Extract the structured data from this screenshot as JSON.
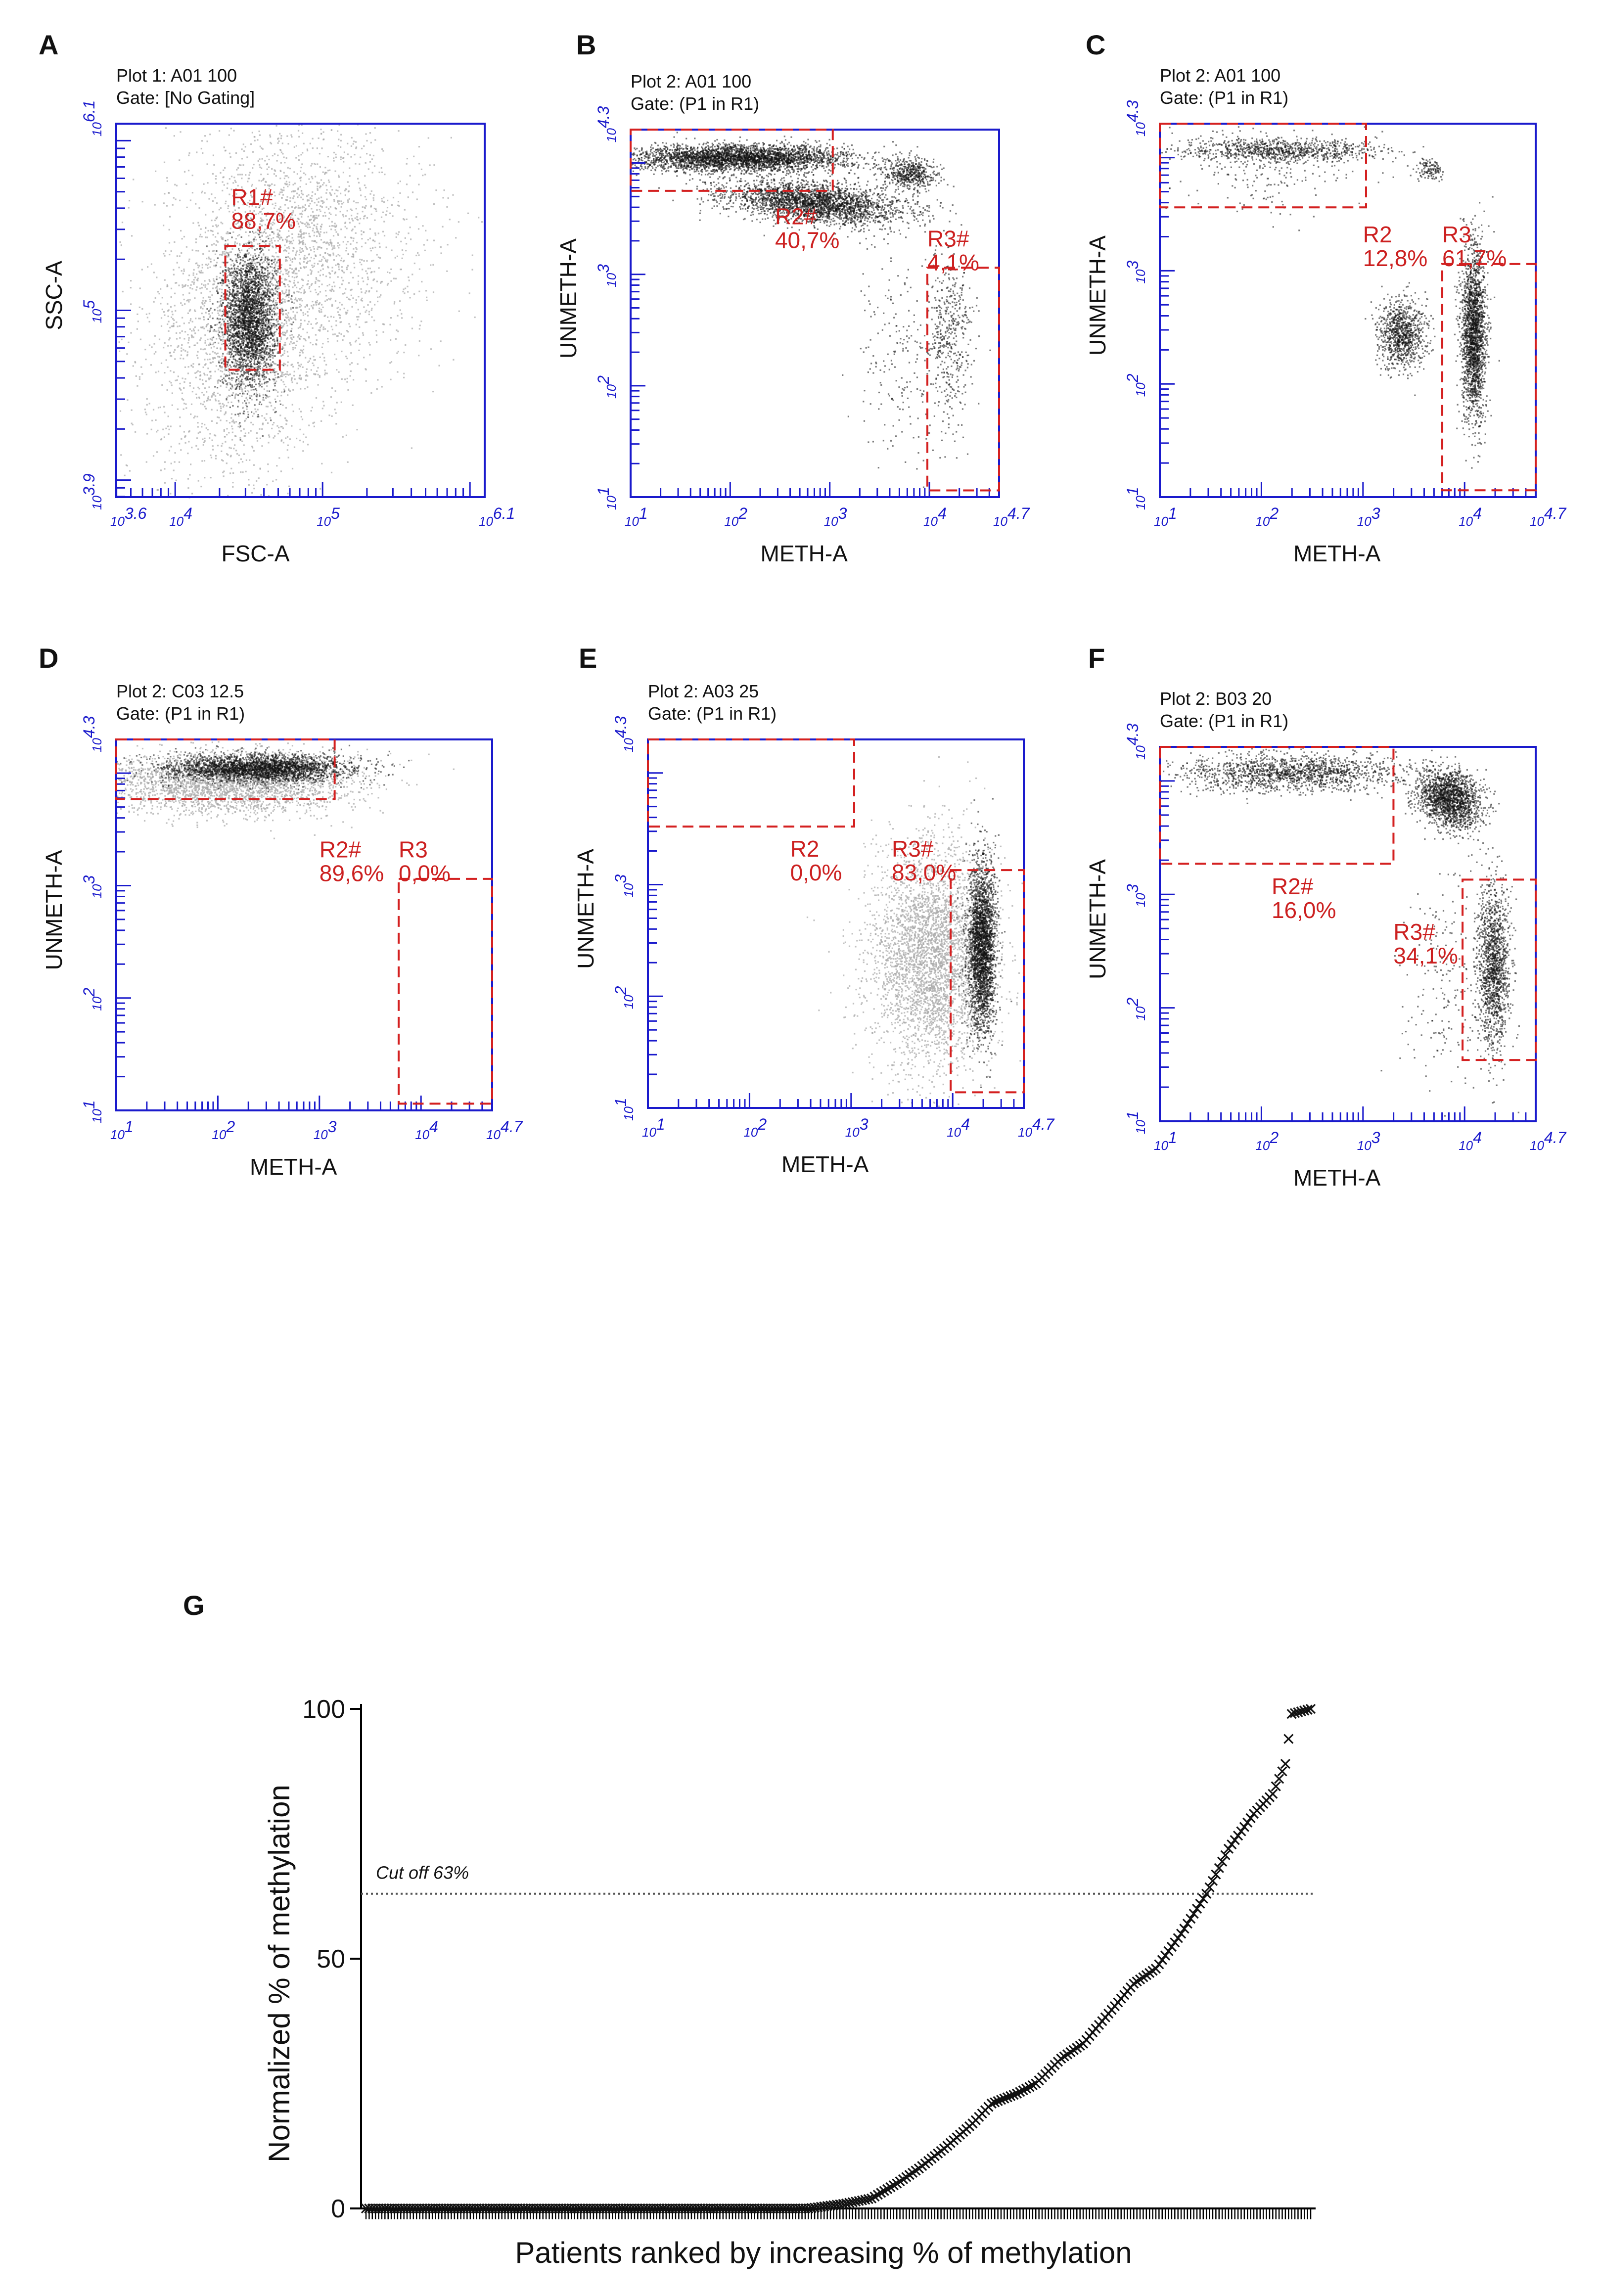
{
  "colors": {
    "axis_blue": "#1a1acc",
    "gate_red": "#d42020",
    "gate_label": "#cc2020",
    "dot_dark": "#111111",
    "dot_gray": "#a8a8a8",
    "text": "#111111",
    "cutoff_line": "#555555"
  },
  "panels": [
    {
      "letter": "A",
      "header_line1": "Plot 1: A01 100",
      "header_line2": "Gate: [No Gating]",
      "xlabel": "FSC-A",
      "ylabel": "SSC-A",
      "x_range": [
        3.6,
        6.1
      ],
      "y_range": [
        3.9,
        6.1
      ],
      "x_tick_labels": [
        {
          "v": 3.6,
          "sup": "3.6"
        },
        {
          "v": 4,
          "sup": "4"
        },
        {
          "v": 5,
          "sup": "5"
        },
        {
          "v": 6.1,
          "sup": "6.1"
        }
      ],
      "y_tick_labels": [
        {
          "v": 3.9,
          "sup": "3.9"
        },
        {
          "v": 5,
          "sup": "5"
        },
        {
          "v": 6.1,
          "sup": "6.1"
        }
      ],
      "gates": [
        {
          "name": "R1#",
          "pct": "88,7%",
          "x0": 4.34,
          "x1": 4.71,
          "y0": 4.65,
          "y1": 5.38,
          "lx": 4.38,
          "ly": 5.62
        }
      ],
      "clusters": [
        {
          "cx": 4.52,
          "cy": 4.95,
          "sx": 0.32,
          "sy": 0.5,
          "n": 2600,
          "shade": "gray",
          "rot": -0.35
        },
        {
          "cx": 4.95,
          "cy": 5.45,
          "sx": 0.45,
          "sy": 0.38,
          "n": 1200,
          "shade": "gray",
          "rot": -0.5
        },
        {
          "cx": 4.5,
          "cy": 4.95,
          "sx": 0.09,
          "sy": 0.2,
          "n": 2600,
          "shade": "dark",
          "rot": 0
        }
      ]
    },
    {
      "letter": "B",
      "header_line1": "Plot 2: A01 100",
      "header_line2": "Gate: (P1 in R1)",
      "xlabel": "METH-A",
      "ylabel": "UNMETH-A",
      "x_range": [
        1,
        4.7
      ],
      "y_range": [
        1,
        4.3
      ],
      "x_tick_labels": [
        {
          "v": 1,
          "sup": "1"
        },
        {
          "v": 2,
          "sup": "2"
        },
        {
          "v": 3,
          "sup": "3"
        },
        {
          "v": 4,
          "sup": "4"
        },
        {
          "v": 4.7,
          "sup": "4.7"
        }
      ],
      "y_tick_labels": [
        {
          "v": 1,
          "sup": "1"
        },
        {
          "v": 2,
          "sup": "2"
        },
        {
          "v": 3,
          "sup": "3"
        },
        {
          "v": 4.3,
          "sup": "4.3"
        }
      ],
      "gates": [
        {
          "name": "R2#",
          "pct": "40,7%",
          "x0": 1,
          "x1": 3.03,
          "y0": 3.75,
          "y1": 4.3,
          "lx": 2.45,
          "ly": 3.45
        },
        {
          "name": "R3#",
          "pct": "4,1%",
          "x0": 3.98,
          "x1": 4.7,
          "y0": 1.06,
          "y1": 3.06,
          "lx": 3.98,
          "ly": 3.25
        }
      ],
      "clusters": [
        {
          "cx": 2.1,
          "cy": 4.05,
          "sx": 0.55,
          "sy": 0.06,
          "n": 3200,
          "shade": "dark",
          "rot": 0
        },
        {
          "cx": 2.85,
          "cy": 3.65,
          "sx": 0.45,
          "sy": 0.09,
          "n": 2600,
          "shade": "dark",
          "rot": -0.08
        },
        {
          "cx": 3.8,
          "cy": 3.9,
          "sx": 0.14,
          "sy": 0.07,
          "n": 500,
          "shade": "dark",
          "rot": 0
        },
        {
          "cx": 4.2,
          "cy": 2.45,
          "sx": 0.12,
          "sy": 0.4,
          "n": 450,
          "shade": "dark",
          "rot": 0
        },
        {
          "cx": 3.7,
          "cy": 2.3,
          "sx": 0.25,
          "sy": 0.5,
          "n": 200,
          "shade": "dark",
          "rot": 0
        }
      ]
    },
    {
      "letter": "C",
      "header_line1": "Plot 2: A01 100",
      "header_line2": "Gate: (P1 in R1)",
      "xlabel": "METH-A",
      "ylabel": "UNMETH-A",
      "x_range": [
        1,
        4.7
      ],
      "y_range": [
        1,
        4.3
      ],
      "x_tick_labels": [
        {
          "v": 1,
          "sup": "1"
        },
        {
          "v": 2,
          "sup": "2"
        },
        {
          "v": 3,
          "sup": "3"
        },
        {
          "v": 4,
          "sup": "4"
        },
        {
          "v": 4.7,
          "sup": "4.7"
        }
      ],
      "y_tick_labels": [
        {
          "v": 1,
          "sup": "1"
        },
        {
          "v": 2,
          "sup": "2"
        },
        {
          "v": 3,
          "sup": "3"
        },
        {
          "v": 4.3,
          "sup": "4.3"
        }
      ],
      "gates": [
        {
          "name": "R2",
          "pct": "12,8%",
          "x0": 1,
          "x1": 3.03,
          "y0": 3.56,
          "y1": 4.3,
          "lx": 3.0,
          "ly": 3.25
        },
        {
          "name": "R3",
          "pct": "61,7%",
          "x0": 3.78,
          "x1": 4.7,
          "y0": 1.06,
          "y1": 3.06,
          "lx": 3.78,
          "ly": 3.25
        }
      ],
      "clusters": [
        {
          "cx": 2.2,
          "cy": 4.07,
          "sx": 0.5,
          "sy": 0.05,
          "n": 900,
          "shade": "dark",
          "rot": 0
        },
        {
          "cx": 2.0,
          "cy": 3.9,
          "sx": 0.45,
          "sy": 0.2,
          "n": 200,
          "shade": "dark",
          "rot": 0
        },
        {
          "cx": 3.65,
          "cy": 3.9,
          "sx": 0.07,
          "sy": 0.05,
          "n": 120,
          "shade": "dark",
          "rot": 0
        },
        {
          "cx": 3.38,
          "cy": 2.45,
          "sx": 0.12,
          "sy": 0.15,
          "n": 900,
          "shade": "dark",
          "rot": 0
        },
        {
          "cx": 4.08,
          "cy": 2.45,
          "sx": 0.06,
          "sy": 0.38,
          "n": 2000,
          "shade": "dark",
          "rot": 0
        }
      ]
    },
    {
      "letter": "D",
      "header_line1": "Plot 2: C03 12.5",
      "header_line2": "Gate: (P1 in R1)",
      "xlabel": "METH-A",
      "ylabel": "UNMETH-A",
      "x_range": [
        1,
        4.7
      ],
      "y_range": [
        1,
        4.3
      ],
      "x_tick_labels": [
        {
          "v": 1,
          "sup": "1"
        },
        {
          "v": 2,
          "sup": "2"
        },
        {
          "v": 3,
          "sup": "3"
        },
        {
          "v": 4,
          "sup": "4"
        },
        {
          "v": 4.7,
          "sup": "4.7"
        }
      ],
      "y_tick_labels": [
        {
          "v": 1,
          "sup": "1"
        },
        {
          "v": 2,
          "sup": "2"
        },
        {
          "v": 3,
          "sup": "3"
        },
        {
          "v": 4.3,
          "sup": "4.3"
        }
      ],
      "gates": [
        {
          "name": "R2#",
          "pct": "89,6%",
          "x0": 1,
          "x1": 3.15,
          "y0": 3.77,
          "y1": 4.3,
          "lx": 3.0,
          "ly": 3.25
        },
        {
          "name": "R3",
          "pct": "0,0%",
          "x0": 3.78,
          "x1": 4.7,
          "y0": 1.06,
          "y1": 3.06,
          "lx": 3.78,
          "ly": 3.25
        }
      ],
      "clusters": [
        {
          "cx": 2.1,
          "cy": 3.92,
          "sx": 0.6,
          "sy": 0.14,
          "n": 2800,
          "shade": "gray",
          "rot": 0
        },
        {
          "cx": 2.4,
          "cy": 4.05,
          "sx": 0.45,
          "sy": 0.06,
          "n": 2600,
          "shade": "dark",
          "rot": 0
        }
      ]
    },
    {
      "letter": "E",
      "header_line1": "Plot 2: A03 25",
      "header_line2": "Gate: (P1 in R1)",
      "xlabel": "METH-A",
      "ylabel": "UNMETH-A",
      "x_range": [
        1,
        4.7
      ],
      "y_range": [
        1,
        4.3
      ],
      "x_tick_labels": [
        {
          "v": 1,
          "sup": "1"
        },
        {
          "v": 2,
          "sup": "2"
        },
        {
          "v": 3,
          "sup": "3"
        },
        {
          "v": 4,
          "sup": "4"
        },
        {
          "v": 4.7,
          "sup": "4.7"
        }
      ],
      "y_tick_labels": [
        {
          "v": 1,
          "sup": "1"
        },
        {
          "v": 2,
          "sup": "2"
        },
        {
          "v": 3,
          "sup": "3"
        },
        {
          "v": 4.3,
          "sup": "4.3"
        }
      ],
      "gates": [
        {
          "name": "R2",
          "pct": "0,0%",
          "x0": 1,
          "x1": 3.03,
          "y0": 3.52,
          "y1": 4.3,
          "lx": 2.4,
          "ly": 3.25
        },
        {
          "name": "R3#",
          "pct": "83,0%",
          "x0": 3.98,
          "x1": 4.7,
          "y0": 1.14,
          "y1": 3.13,
          "lx": 3.4,
          "ly": 3.25
        }
      ],
      "clusters": [
        {
          "cx": 3.8,
          "cy": 2.35,
          "sx": 0.3,
          "sy": 0.5,
          "n": 3500,
          "shade": "gray",
          "rot": 0
        },
        {
          "cx": 4.28,
          "cy": 2.45,
          "sx": 0.07,
          "sy": 0.38,
          "n": 2600,
          "shade": "dark",
          "rot": 0
        }
      ]
    },
    {
      "letter": "F",
      "header_line1": "Plot 2: B03 20",
      "header_line2": "Gate: (P1 in R1)",
      "xlabel": "METH-A",
      "ylabel": "UNMETH-A",
      "x_range": [
        1,
        4.7
      ],
      "y_range": [
        1,
        4.3
      ],
      "x_tick_labels": [
        {
          "v": 1,
          "sup": "1"
        },
        {
          "v": 2,
          "sup": "2"
        },
        {
          "v": 3,
          "sup": "3"
        },
        {
          "v": 4,
          "sup": "4"
        },
        {
          "v": 4.7,
          "sup": "4.7"
        }
      ],
      "y_tick_labels": [
        {
          "v": 1,
          "sup": "1"
        },
        {
          "v": 2,
          "sup": "2"
        },
        {
          "v": 3,
          "sup": "3"
        },
        {
          "v": 4.3,
          "sup": "4.3"
        }
      ],
      "gates": [
        {
          "name": "R2#",
          "pct": "16,0%",
          "x0": 1,
          "x1": 3.3,
          "y0": 3.27,
          "y1": 4.3,
          "lx": 2.1,
          "ly": 3.0
        },
        {
          "name": "R3#",
          "pct": "34,1%",
          "x0": 3.98,
          "x1": 4.7,
          "y0": 1.54,
          "y1": 3.13,
          "lx": 3.3,
          "ly": 2.6
        }
      ],
      "clusters": [
        {
          "cx": 2.3,
          "cy": 4.08,
          "sx": 0.55,
          "sy": 0.08,
          "n": 1500,
          "shade": "dark",
          "rot": 0
        },
        {
          "cx": 3.85,
          "cy": 3.85,
          "sx": 0.16,
          "sy": 0.12,
          "n": 1700,
          "shade": "dark",
          "rot": -0.4
        },
        {
          "cx": 4.28,
          "cy": 2.35,
          "sx": 0.08,
          "sy": 0.35,
          "n": 1400,
          "shade": "dark",
          "rot": 0
        },
        {
          "cx": 3.8,
          "cy": 2.2,
          "sx": 0.2,
          "sy": 0.5,
          "n": 200,
          "shade": "dark",
          "rot": 0
        }
      ]
    }
  ],
  "chart_data": {
    "type": "scatter",
    "letter": "G",
    "title": "",
    "xlabel": "Patients ranked by increasing % of methylation",
    "ylabel": "Normalized % of methylation",
    "ylim": [
      0,
      100
    ],
    "y_ticks": [
      0,
      50,
      100
    ],
    "n_patients": 300,
    "marker": "x",
    "cutoff": {
      "value": 63,
      "label": "Cut off 63%"
    },
    "profile": [
      {
        "rank": 0,
        "value": 0
      },
      {
        "rank": 140,
        "value": 0
      },
      {
        "rank": 152,
        "value": 1
      },
      {
        "rank": 160,
        "value": 2
      },
      {
        "rank": 168,
        "value": 5
      },
      {
        "rank": 175,
        "value": 8
      },
      {
        "rank": 183,
        "value": 12
      },
      {
        "rank": 192,
        "value": 17
      },
      {
        "rank": 198,
        "value": 21
      },
      {
        "rank": 206,
        "value": 23
      },
      {
        "rank": 212,
        "value": 25
      },
      {
        "rank": 220,
        "value": 30
      },
      {
        "rank": 227,
        "value": 33
      },
      {
        "rank": 235,
        "value": 39
      },
      {
        "rank": 243,
        "value": 45
      },
      {
        "rank": 250,
        "value": 48
      },
      {
        "rank": 258,
        "value": 55
      },
      {
        "rank": 266,
        "value": 63
      },
      {
        "rank": 273,
        "value": 72
      },
      {
        "rank": 281,
        "value": 79
      },
      {
        "rank": 287,
        "value": 83
      },
      {
        "rank": 291,
        "value": 89
      },
      {
        "rank": 293,
        "value": 99
      },
      {
        "rank": 299,
        "value": 100
      }
    ]
  }
}
